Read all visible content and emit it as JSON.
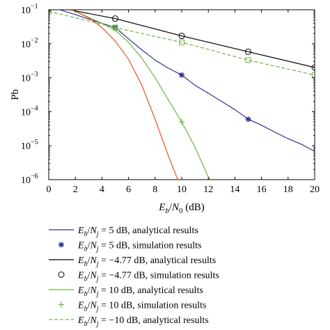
{
  "chart_data": {
    "type": "line",
    "xlabel": "E_b/N_0 (dB)",
    "ylabel": "Pb",
    "xlim": [
      0,
      20
    ],
    "ylim": [
      1e-06,
      0.1
    ],
    "yscale": "log",
    "x_ticks": [
      0,
      2,
      4,
      6,
      8,
      10,
      12,
      14,
      16,
      18,
      20
    ],
    "y_ticks": [
      {
        "value": 1e-06,
        "exp": "−6"
      },
      {
        "value": 1e-05,
        "exp": "−5"
      },
      {
        "value": 0.0001,
        "exp": "−4"
      },
      {
        "value": 0.001,
        "exp": "−3"
      },
      {
        "value": 0.01,
        "exp": "−2"
      },
      {
        "value": 0.1,
        "exp": "−1"
      }
    ],
    "y_tick_base": "10",
    "grid": false,
    "series": [
      {
        "id": "s5a",
        "color": "#2e3192",
        "style": "solid",
        "marker": "none",
        "x": [
          0,
          1,
          2,
          3,
          4,
          5,
          6,
          7,
          8,
          9,
          10,
          11,
          12,
          13,
          14,
          15,
          16,
          17,
          18,
          19,
          20
        ],
        "y": [
          0.13,
          0.095,
          0.072,
          0.053,
          0.04,
          0.03,
          0.014,
          0.0066,
          0.0033,
          0.0019,
          0.0012,
          0.0006,
          0.00035,
          0.0002,
          0.000115,
          6e-05,
          4e-05,
          2.5e-05,
          1.6e-05,
          1.1e-05,
          6.8e-06
        ]
      },
      {
        "id": "s5s",
        "color": "#2e3192",
        "style": "none",
        "marker": "asterisk",
        "x": [
          5,
          10,
          15
        ],
        "y": [
          0.03,
          0.0012,
          6e-05
        ]
      },
      {
        "id": "s477a",
        "color": "#000000",
        "style": "solid",
        "marker": "none",
        "x": [
          0,
          5,
          10,
          15,
          20
        ],
        "y": [
          0.13,
          0.055,
          0.017,
          0.0058,
          0.002
        ]
      },
      {
        "id": "s477s",
        "color": "#000000",
        "style": "none",
        "marker": "circle",
        "x": [
          0,
          5,
          10,
          15,
          20
        ],
        "y": [
          0.11,
          0.055,
          0.017,
          0.0058,
          0.002
        ]
      },
      {
        "id": "s10a",
        "color": "#6db33f",
        "style": "solid",
        "marker": "none",
        "x": [
          0,
          1,
          2,
          3,
          4,
          5,
          6,
          7,
          8,
          9,
          10,
          11,
          12,
          12.2
        ],
        "y": [
          0.155,
          0.125,
          0.09,
          0.06,
          0.04,
          0.025,
          0.011,
          0.0038,
          0.001,
          0.00022,
          5e-05,
          9e-06,
          1.2e-06,
          1e-06
        ]
      },
      {
        "id": "s10s",
        "color": "#6db33f",
        "style": "none",
        "marker": "plus",
        "x": [
          5,
          10
        ],
        "y": [
          0.028,
          5e-05
        ]
      },
      {
        "id": "s10neg",
        "color": "#6db33f",
        "style": "dashed",
        "marker": "none",
        "x": [
          0,
          5,
          10,
          15,
          20
        ],
        "y": [
          0.09,
          0.03,
          0.011,
          0.0033,
          0.0012
        ]
      },
      {
        "id": "s10negsim",
        "color": "#6db33f",
        "style": "none",
        "marker": "square",
        "x": [
          0,
          5,
          10,
          15,
          20
        ],
        "y": [
          0.09,
          0.03,
          0.011,
          0.0033,
          0.0012
        ]
      },
      {
        "id": "sred",
        "color": "#e8541c",
        "style": "solid",
        "marker": "none",
        "x": [
          0,
          1,
          2,
          3,
          4,
          5,
          6,
          7,
          8,
          9,
          9.7
        ],
        "y": [
          0.15,
          0.12,
          0.09,
          0.058,
          0.03,
          0.012,
          0.0035,
          0.0006,
          6e-05,
          5e-06,
          1e-06
        ]
      }
    ],
    "legend": {
      "placement": "bottom",
      "entries": [
        {
          "series": "s5a",
          "eb": "E",
          "eb_sub": "b",
          "nj": "N",
          "nj_sub": "j",
          "value": " = 5 dB, analytical results"
        },
        {
          "series": "s5s",
          "eb": "E",
          "eb_sub": "b",
          "nj": "N",
          "nj_sub": "j",
          "value": " = 5 dB, simulation results"
        },
        {
          "series": "s477a",
          "eb": "E",
          "eb_sub": "b",
          "nj": "N",
          "nj_sub": "j",
          "value": " = −4.77 dB, analytical results"
        },
        {
          "series": "s477s",
          "eb": "E",
          "eb_sub": "b",
          "nj": "N",
          "nj_sub": "j",
          "value": " = −4.77 dB, simulation results"
        },
        {
          "series": "s10a",
          "eb": "E",
          "eb_sub": "b",
          "nj": "N",
          "nj_sub": "j",
          "value": " = 10 dB, analytical results"
        },
        {
          "series": "s10s",
          "eb": "E",
          "eb_sub": "b",
          "nj": "N",
          "nj_sub": "j",
          "value": " = 10 dB, simulation results"
        },
        {
          "series": "s10neg",
          "eb": "E",
          "eb_sub": "b",
          "nj": "N",
          "nj_sub": "j",
          "value": " = −10 dB, analytical results"
        }
      ]
    }
  }
}
